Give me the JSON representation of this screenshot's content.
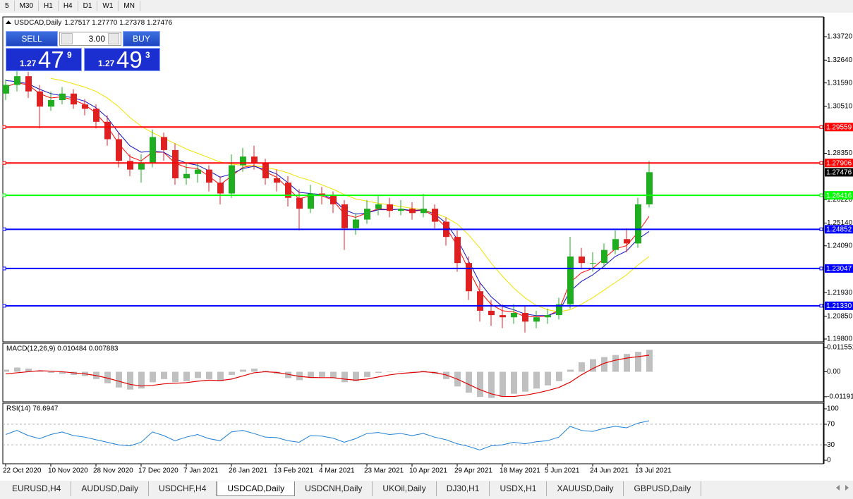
{
  "toolbar": [
    "5",
    "M30",
    "H1",
    "H4",
    "D1",
    "W1",
    "MN"
  ],
  "trade_panel": {
    "sell": "SELL",
    "buy": "BUY",
    "volume": "3.00",
    "bid": {
      "prefix": "1.27",
      "pips": "47",
      "fraction": "9"
    },
    "ask": {
      "prefix": "1.27",
      "pips": "49",
      "fraction": "3"
    }
  },
  "chart_data": [
    {
      "type": "candlestick",
      "title": "USDCAD,Daily",
      "subtitle": "1.27517 1.27770 1.27378 1.27476",
      "categories": [
        "22 Oct 2020",
        null,
        null,
        null,
        "10 Nov 2020",
        null,
        null,
        null,
        "28 Nov 2020",
        null,
        null,
        null,
        "17 Dec 2020",
        null,
        null,
        null,
        "7 Jan 2021",
        null,
        null,
        null,
        "26 Jan 2021",
        null,
        null,
        null,
        "13 Feb 2021",
        null,
        null,
        null,
        "4 Mar 2021",
        null,
        null,
        null,
        "23 Mar 2021",
        null,
        null,
        null,
        "10 Apr 2021",
        null,
        null,
        null,
        "29 Apr 2021",
        null,
        null,
        null,
        "18 May 2021",
        null,
        null,
        null,
        "5 Jun 2021",
        null,
        null,
        null,
        "24 Jun 2021",
        null,
        null,
        null,
        "13 Jul 2021",
        null
      ],
      "open": [
        1.311,
        1.315,
        1.319,
        1.312,
        1.305,
        1.308,
        1.311,
        1.306,
        1.304,
        1.298,
        1.29,
        1.28,
        1.276,
        1.279,
        1.291,
        1.285,
        1.272,
        1.274,
        1.276,
        1.27,
        1.265,
        1.278,
        1.282,
        1.279,
        1.272,
        1.27,
        1.263,
        1.258,
        1.265,
        1.264,
        1.26,
        1.249,
        1.253,
        1.258,
        1.26,
        1.257,
        1.258,
        1.256,
        1.258,
        1.252,
        1.245,
        1.233,
        1.22,
        1.211,
        1.209,
        1.208,
        1.21,
        1.206,
        1.208,
        1.209,
        1.214,
        1.236,
        1.233,
        1.233,
        1.239,
        1.244,
        1.242,
        1.26
      ],
      "high": [
        1.3175,
        1.3215,
        1.321,
        1.315,
        1.312,
        1.314,
        1.313,
        1.3085,
        1.306,
        1.301,
        1.293,
        1.283,
        1.283,
        1.2945,
        1.293,
        1.288,
        1.279,
        1.279,
        1.278,
        1.273,
        1.283,
        1.286,
        1.287,
        1.281,
        1.276,
        1.273,
        1.267,
        1.269,
        1.268,
        1.266,
        1.262,
        1.256,
        1.262,
        1.264,
        1.263,
        1.262,
        1.261,
        1.2648,
        1.26,
        1.254,
        1.248,
        1.236,
        1.224,
        1.216,
        1.214,
        1.214,
        1.213,
        1.211,
        1.212,
        1.217,
        1.245,
        1.24,
        1.238,
        1.242,
        1.248,
        1.249,
        1.263,
        1.28
      ],
      "low": [
        1.308,
        1.312,
        1.309,
        1.295,
        1.303,
        1.306,
        1.304,
        1.301,
        1.295,
        1.287,
        1.277,
        1.273,
        1.27,
        1.277,
        1.28,
        1.269,
        1.269,
        1.27,
        1.266,
        1.26,
        1.263,
        1.275,
        1.276,
        1.269,
        1.266,
        1.259,
        1.248,
        1.256,
        1.26,
        1.256,
        1.239,
        1.246,
        1.251,
        1.255,
        1.254,
        1.255,
        1.253,
        1.254,
        1.249,
        1.241,
        1.229,
        1.216,
        1.206,
        1.204,
        1.203,
        1.205,
        1.201,
        1.203,
        1.205,
        1.207,
        1.212,
        1.23,
        1.229,
        1.231,
        1.237,
        1.238,
        1.24,
        1.2585
      ],
      "close": [
        1.315,
        1.319,
        1.312,
        1.305,
        1.308,
        1.311,
        1.306,
        1.304,
        1.298,
        1.29,
        1.28,
        1.276,
        1.279,
        1.291,
        1.285,
        1.272,
        1.274,
        1.276,
        1.27,
        1.265,
        1.278,
        1.282,
        1.279,
        1.272,
        1.27,
        1.263,
        1.258,
        1.265,
        1.264,
        1.26,
        1.249,
        1.253,
        1.258,
        1.26,
        1.257,
        1.258,
        1.256,
        1.258,
        1.252,
        1.245,
        1.233,
        1.22,
        1.211,
        1.209,
        1.208,
        1.21,
        1.206,
        1.208,
        1.209,
        1.214,
        1.236,
        1.233,
        1.233,
        1.239,
        1.244,
        1.242,
        1.26,
        1.2748
      ],
      "up_color": "#1fae1f",
      "down_color": "#e02020",
      "lines": [
        {
          "color": "#ff0000",
          "values": [
            1.314,
            1.316,
            1.315,
            1.311,
            1.309,
            1.3095,
            1.308,
            1.306,
            1.302,
            1.296,
            1.288,
            1.282,
            1.28,
            1.284,
            1.284,
            1.279,
            1.277,
            1.2765,
            1.273,
            1.269,
            1.273,
            1.277,
            1.278,
            1.275,
            1.2725,
            1.2675,
            1.2625,
            1.264,
            1.264,
            1.262,
            1.2555,
            1.254,
            1.256,
            1.258,
            1.2575,
            1.2578,
            1.2568,
            1.2574,
            1.2545,
            1.2495,
            1.241,
            1.23,
            1.22,
            1.214,
            1.211,
            1.2105,
            1.2083,
            1.2082,
            1.2086,
            1.2113,
            1.224,
            1.2285,
            1.2305,
            1.235,
            1.2395,
            1.241,
            1.247,
            1.2545
          ]
        },
        {
          "color": "#1010c0",
          "values": [
            1.317,
            1.3165,
            1.3155,
            1.313,
            1.311,
            1.31,
            1.309,
            1.3075,
            1.3045,
            1.3,
            1.293,
            1.287,
            1.284,
            1.2845,
            1.284,
            1.281,
            1.279,
            1.278,
            1.2755,
            1.2725,
            1.274,
            1.2765,
            1.2775,
            1.276,
            1.274,
            1.27,
            1.2655,
            1.265,
            1.2645,
            1.2625,
            1.2575,
            1.2555,
            1.256,
            1.2575,
            1.2575,
            1.2578,
            1.2572,
            1.2575,
            1.2555,
            1.2515,
            1.244,
            1.234,
            1.224,
            1.2175,
            1.213,
            1.2115,
            1.2095,
            1.2088,
            1.2088,
            1.2105,
            1.22,
            1.2245,
            1.2275,
            1.2315,
            1.236,
            1.2385,
            1.244,
            1.2475
          ]
        },
        {
          "color": "#f2e200",
          "values": [
            null,
            null,
            null,
            null,
            1.318,
            1.317,
            1.3155,
            1.314,
            1.312,
            1.309,
            1.305,
            1.3,
            1.296,
            1.293,
            1.2905,
            1.288,
            1.2855,
            1.2835,
            1.2815,
            1.2795,
            1.2785,
            1.278,
            1.2778,
            1.277,
            1.276,
            1.2745,
            1.2725,
            1.271,
            1.269,
            1.267,
            1.2645,
            1.2625,
            1.2615,
            1.2605,
            1.2598,
            1.259,
            1.2582,
            1.2575,
            1.256,
            1.254,
            1.251,
            1.246,
            1.24,
            1.233,
            1.227,
            1.2215,
            1.217,
            1.2135,
            1.2115,
            1.2105,
            1.2115,
            1.214,
            1.217,
            1.2205,
            1.224,
            1.2275,
            1.232,
            1.236
          ]
        }
      ],
      "levels": [
        {
          "value": 1.29559,
          "color": "#ff0000"
        },
        {
          "value": 1.27906,
          "color": "#ff0000"
        },
        {
          "value": 1.26416,
          "color": "#00ff00"
        },
        {
          "value": 1.24852,
          "color": "#0000ff"
        },
        {
          "value": 1.23047,
          "color": "#0000ff"
        },
        {
          "value": 1.2133,
          "label": "1.21330",
          "color": "#0000ff"
        }
      ],
      "current_price": 1.27476,
      "ylim": [
        1.1967,
        1.3463
      ],
      "yticks": [
        {
          "value": 1.3372,
          "label": "1.33720"
        },
        {
          "value": 1.3264,
          "label": "1.32640"
        },
        {
          "value": 1.3159,
          "label": "1.31590"
        },
        {
          "value": 1.3051,
          "label": "1.30510"
        },
        {
          "value": 1.2835,
          "label": "1.28350"
        },
        {
          "value": 1.2622,
          "label": "1.26220"
        },
        {
          "value": 1.2514,
          "label": "1.25140"
        },
        {
          "value": 1.2409,
          "label": "1.24090"
        },
        {
          "value": 1.2193,
          "label": "1.21930"
        },
        {
          "value": 1.2085,
          "label": "1.20850"
        },
        {
          "value": 1.198,
          "label": "1.19800"
        }
      ]
    },
    {
      "type": "macd",
      "title": "MACD(12,26,9) 0.010484 0.007883",
      "histogram": {
        "color": "#c0c0c0",
        "values": [
          0.001,
          0.002,
          0.0015,
          0.0005,
          -0.0005,
          -0.001,
          -0.0015,
          -0.002,
          -0.0035,
          -0.0055,
          -0.0075,
          -0.0085,
          -0.008,
          -0.005,
          -0.0035,
          -0.005,
          -0.0045,
          -0.003,
          -0.0035,
          -0.0045,
          -0.0015,
          0.001,
          0.0015,
          0.0005,
          -0.001,
          -0.003,
          -0.004,
          -0.003,
          -0.0025,
          -0.003,
          -0.005,
          -0.0045,
          -0.0025,
          -0.0005,
          0.0,
          0.0,
          0.0,
          0.0005,
          -0.001,
          -0.0035,
          -0.007,
          -0.01,
          -0.012,
          -0.0125,
          -0.012,
          -0.0105,
          -0.0095,
          -0.008,
          -0.0065,
          -0.0045,
          0.001,
          0.0045,
          0.006,
          0.007,
          0.008,
          0.0085,
          0.0095,
          0.010484
        ]
      },
      "signal": {
        "color": "#e00000",
        "values": [
          -0.001,
          -0.0005,
          0.0,
          0.0005,
          0.0003,
          0.0,
          -0.0005,
          -0.001,
          -0.0018,
          -0.003,
          -0.0045,
          -0.006,
          -0.0068,
          -0.0065,
          -0.0058,
          -0.0055,
          -0.0052,
          -0.0045,
          -0.004,
          -0.0042,
          -0.0035,
          -0.002,
          -0.0005,
          0.0,
          -0.0003,
          -0.0012,
          -0.0022,
          -0.0027,
          -0.0028,
          -0.0028,
          -0.0035,
          -0.004,
          -0.0035,
          -0.0025,
          -0.0015,
          -0.0008,
          -0.0004,
          0.0,
          -0.0004,
          -0.0015,
          -0.0035,
          -0.006,
          -0.0085,
          -0.0105,
          -0.0118,
          -0.0118,
          -0.0112,
          -0.0102,
          -0.009,
          -0.0075,
          -0.005,
          -0.0015,
          0.0015,
          0.004,
          0.0055,
          0.0065,
          0.0072,
          0.007883
        ]
      },
      "ylim": [
        -0.0143,
        0.0136
      ],
      "yticks": [
        0.011551,
        {
          "value": 0,
          "label": "0.00"
        },
        -0.011914
      ]
    },
    {
      "type": "line",
      "title": "RSI(14) 76.6947",
      "color": "#1e7fd8",
      "values": [
        50,
        58,
        48,
        42,
        50,
        55,
        48,
        45,
        40,
        35,
        30,
        28,
        35,
        55,
        48,
        38,
        45,
        50,
        42,
        38,
        55,
        58,
        52,
        45,
        44,
        38,
        35,
        48,
        47,
        43,
        35,
        42,
        52,
        54,
        50,
        52,
        48,
        52,
        45,
        40,
        32,
        27,
        20,
        28,
        30,
        35,
        32,
        36,
        38,
        45,
        66,
        58,
        56,
        62,
        66,
        63,
        72,
        76.6947
      ],
      "levels": [
        70,
        30
      ],
      "ylim": [
        -6.8,
        111
      ],
      "yticks": [
        100,
        70,
        30,
        0
      ]
    }
  ],
  "tabs": [
    "EURUSD,H4",
    "AUDUSD,Daily",
    "USDCHF,H4",
    "USDCAD,Daily",
    "USDCNH,Daily",
    "UKOil,Daily",
    "DJ30,H1",
    "USDX,H1",
    "XAUUSD,Daily",
    "GBPUSD,Daily"
  ],
  "active_tab": "USDCAD,Daily"
}
